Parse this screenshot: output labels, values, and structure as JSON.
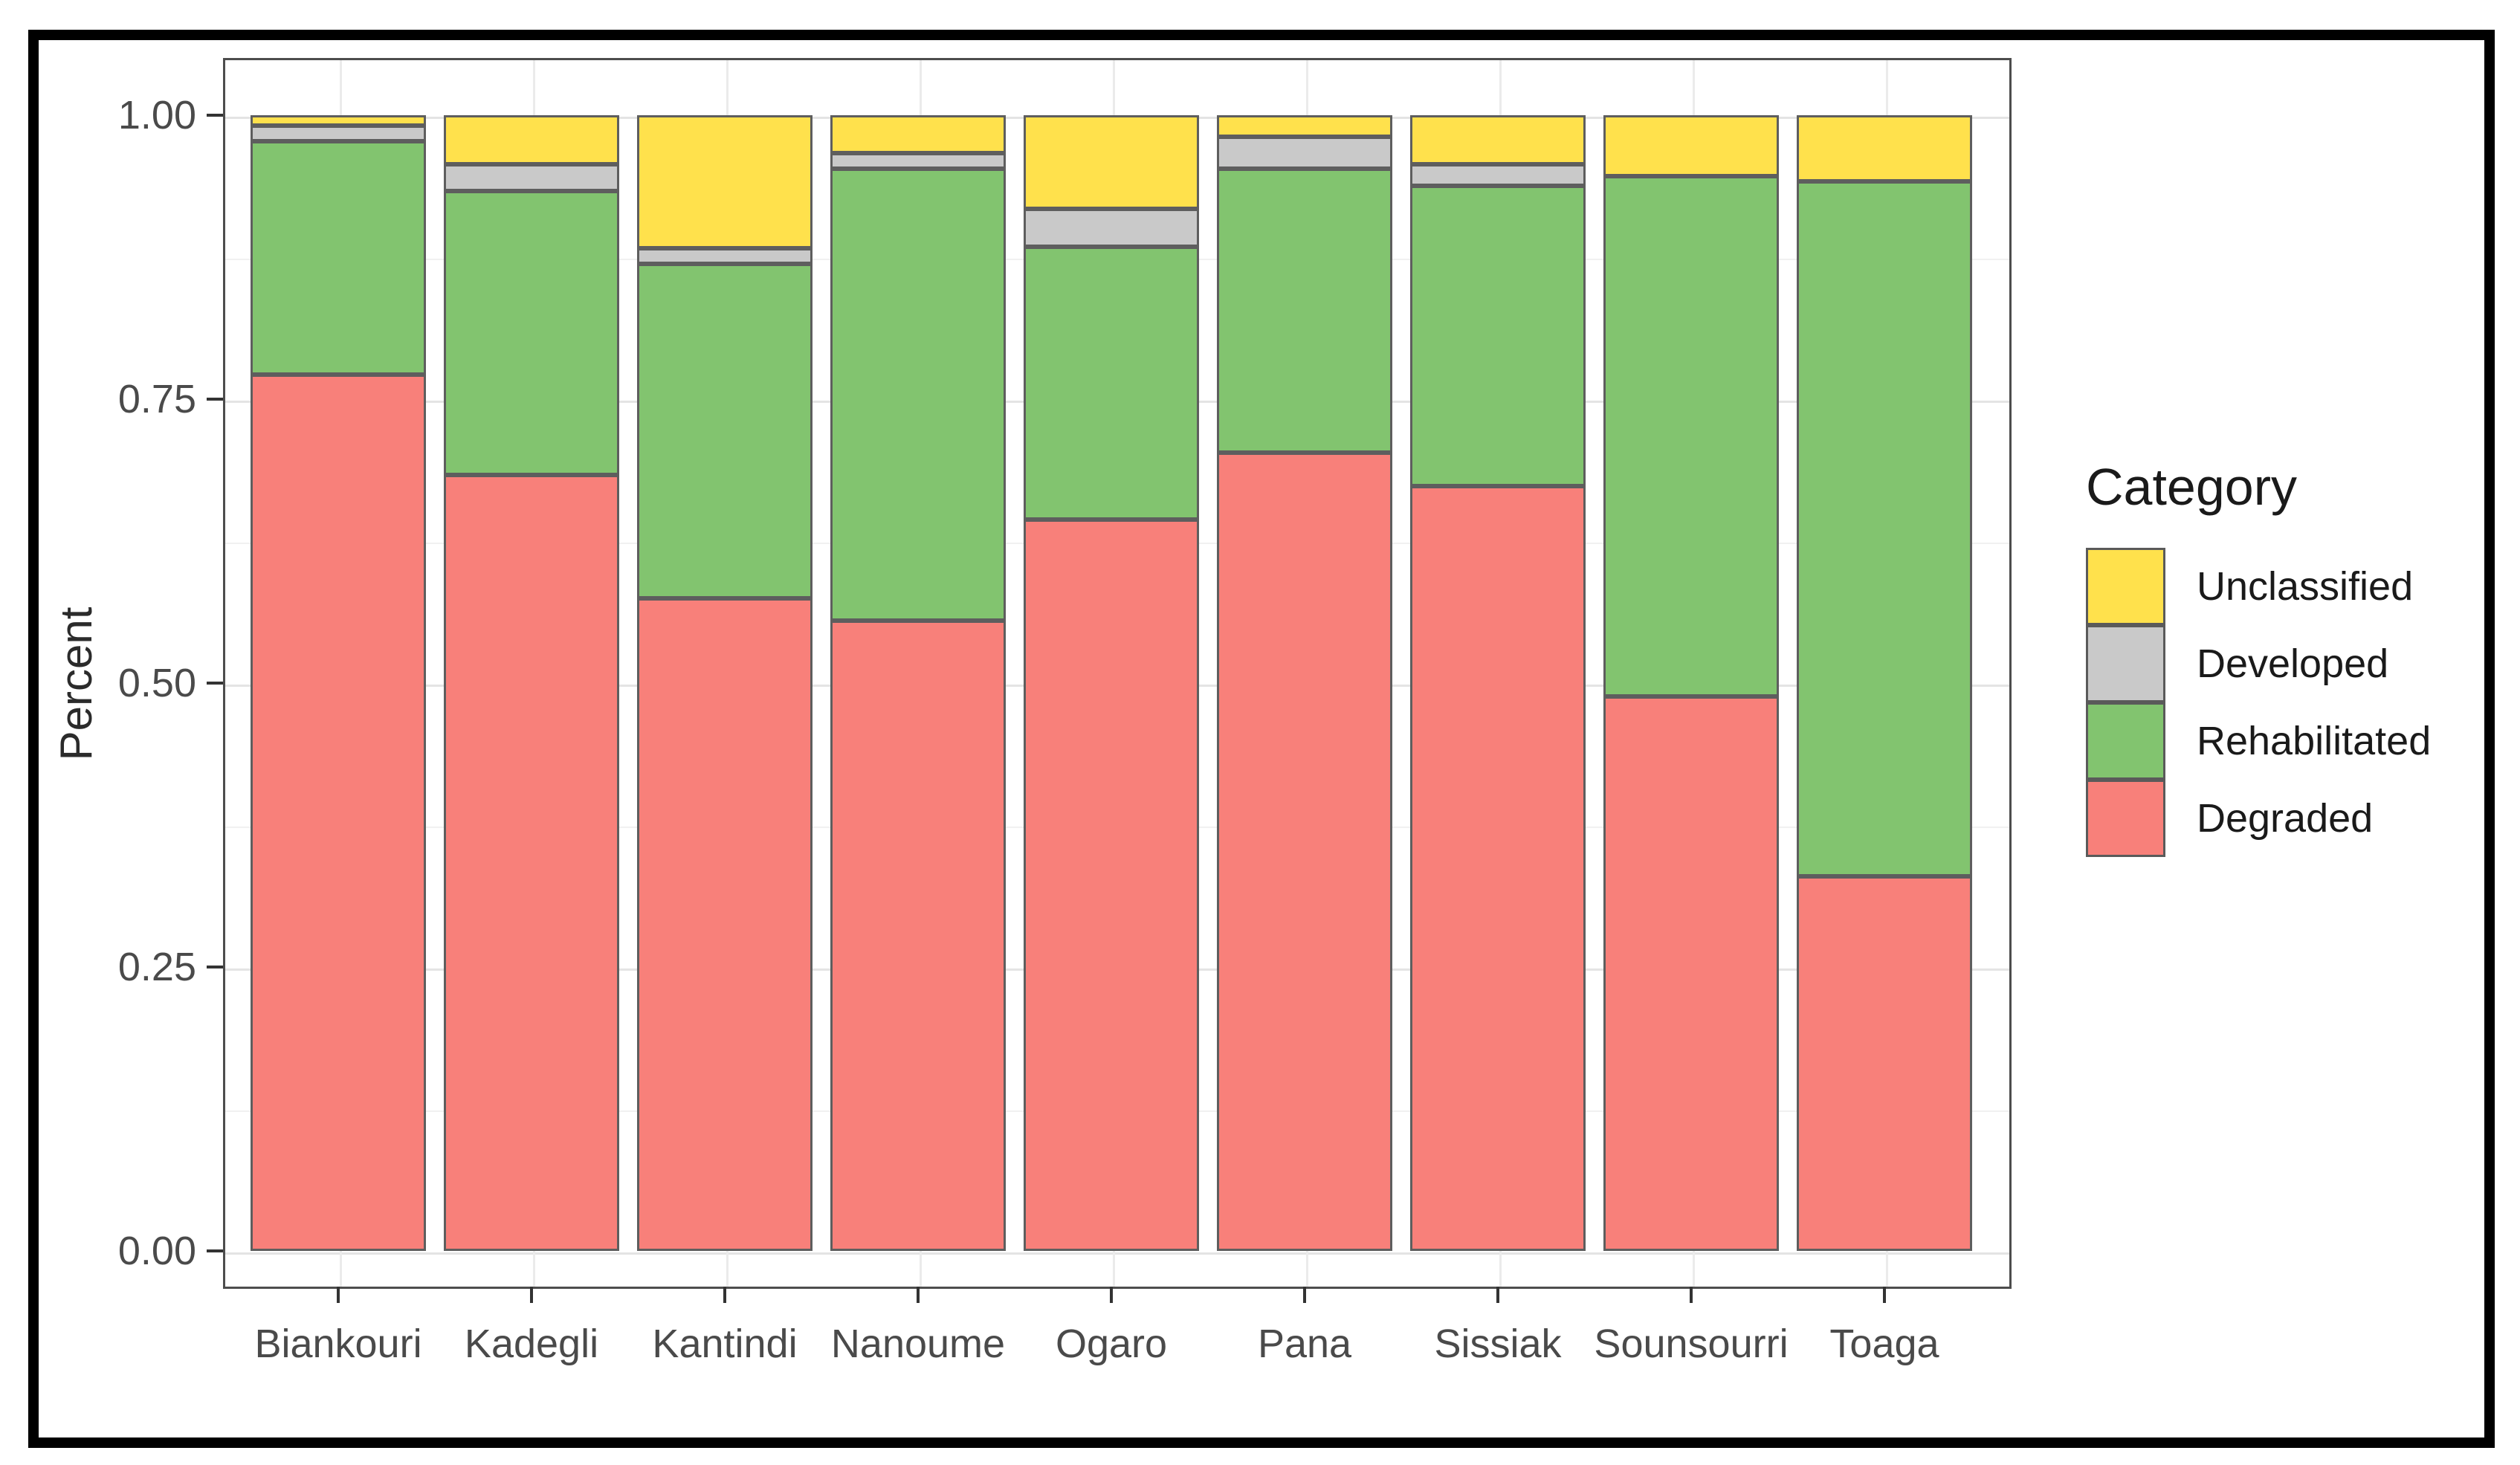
{
  "chart_data": {
    "type": "bar",
    "subtype": "stacked-percent",
    "title": "",
    "xlabel": "",
    "ylabel": "Percent",
    "ylim": [
      0,
      1
    ],
    "grid": true,
    "legend_position": "right",
    "legend_title": "Category",
    "categories": [
      "Biankouri",
      "Kadegli",
      "Kantindi",
      "Nanoume",
      "Ogaro",
      "Pana",
      "Sissiak",
      "Sounsourri",
      "Toaga"
    ],
    "y_ticks": [
      "1.00",
      "0.75",
      "0.50",
      "0.25",
      "0.00"
    ],
    "y_tick_values": [
      1.0,
      0.75,
      0.5,
      0.25,
      0.0
    ],
    "y_minor_tick_values": [
      0.875,
      0.625,
      0.375,
      0.125
    ],
    "series": [
      {
        "name": "Unclassified",
        "color": "#ffe14c",
        "values": [
          0.005,
          0.04,
          0.115,
          0.03,
          0.08,
          0.015,
          0.04,
          0.05,
          0.055
        ]
      },
      {
        "name": "Developed",
        "color": "#c9c9c9",
        "values": [
          0.01,
          0.02,
          0.01,
          0.01,
          0.03,
          0.025,
          0.015,
          0.0,
          0.0
        ]
      },
      {
        "name": "Rehabilitated",
        "color": "#82c46f",
        "values": [
          0.205,
          0.25,
          0.295,
          0.4,
          0.24,
          0.25,
          0.265,
          0.46,
          0.615
        ]
      },
      {
        "name": "Degraded",
        "color": "#f8807a",
        "values": [
          0.78,
          0.69,
          0.58,
          0.56,
          0.65,
          0.71,
          0.68,
          0.49,
          0.33
        ]
      }
    ],
    "colors": {
      "segment_border": "#5e5e5e",
      "panel_border": "#4d4d4d",
      "figure_frame": "#000000",
      "grid_major": "#e4e4e4",
      "grid_minor": "#f1f1f1",
      "axis_tick": "#333333",
      "axis_text": "#4a4a4a",
      "legend_text": "#1a1a1a"
    }
  }
}
